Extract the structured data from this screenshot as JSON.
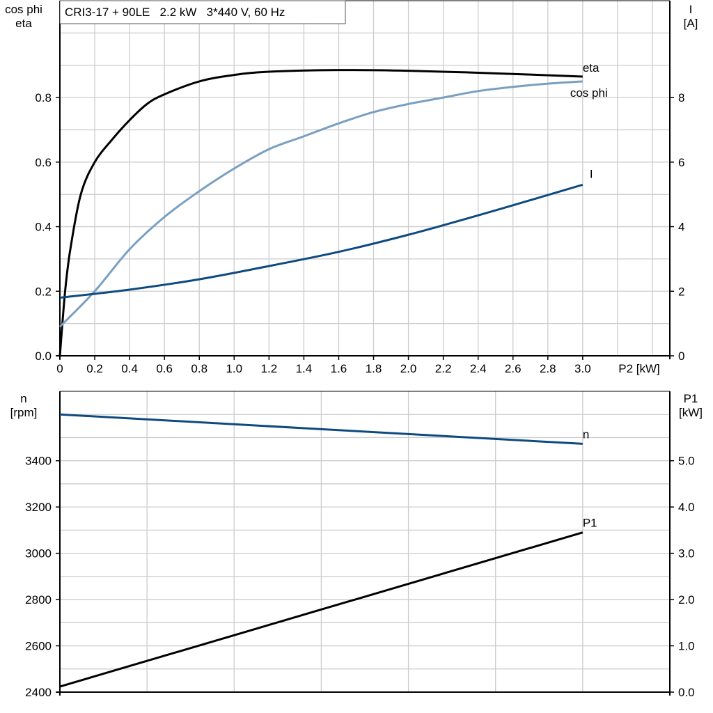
{
  "chart_data": [
    {
      "type": "line",
      "title": "CRI3-17 + 90LE   2.2 kW   3*440 V, 60 Hz",
      "xlabel": "P2 [kW]",
      "ylabel": "cos phi\neta",
      "ylabel_right": "I\n[A]",
      "xlim": [
        0,
        3.5
      ],
      "ylim": [
        0,
        1.1
      ],
      "ylim_right": [
        0,
        11
      ],
      "grid": true,
      "xticks": [
        "0",
        "0.2",
        "0.4",
        "0.6",
        "0.8",
        "1.0",
        "1.2",
        "1.4",
        "1.6",
        "1.8",
        "2.0",
        "2.2",
        "2.4",
        "2.6",
        "2.8",
        "3.0"
      ],
      "yticks": [
        "0.0",
        "0.2",
        "0.4",
        "0.6",
        "0.8"
      ],
      "yticks_right": [
        "0",
        "2",
        "4",
        "6",
        "8"
      ],
      "series": [
        {
          "name": "eta",
          "axis": "left",
          "color": "#000000",
          "x": [
            0,
            0.03,
            0.06,
            0.12,
            0.2,
            0.3,
            0.4,
            0.5,
            0.6,
            0.8,
            1.0,
            1.2,
            1.6,
            2.0,
            2.5,
            3.0
          ],
          "y": [
            0,
            0.2,
            0.33,
            0.5,
            0.6,
            0.67,
            0.73,
            0.78,
            0.81,
            0.85,
            0.87,
            0.88,
            0.885,
            0.883,
            0.875,
            0.865
          ]
        },
        {
          "name": "cos phi",
          "axis": "left",
          "color": "#7a9fc0",
          "x": [
            0,
            0.2,
            0.4,
            0.6,
            0.8,
            1.0,
            1.2,
            1.4,
            1.6,
            1.8,
            2.0,
            2.2,
            2.4,
            2.6,
            2.8,
            3.0
          ],
          "y": [
            0.09,
            0.2,
            0.33,
            0.43,
            0.51,
            0.58,
            0.64,
            0.68,
            0.72,
            0.755,
            0.78,
            0.8,
            0.82,
            0.833,
            0.843,
            0.85
          ]
        },
        {
          "name": "I",
          "axis": "right",
          "color": "#0e4a80",
          "x": [
            0,
            0.4,
            0.8,
            1.2,
            1.6,
            2.0,
            2.4,
            2.8,
            3.0
          ],
          "y": [
            1.8,
            2.05,
            2.37,
            2.78,
            3.22,
            3.75,
            4.35,
            4.98,
            5.3
          ]
        }
      ]
    },
    {
      "type": "line",
      "xlim": [
        0,
        3.5
      ],
      "ylabel": "n\n[rpm]",
      "ylabel_right": "P1\n[kW]",
      "ylim": [
        2400,
        3700
      ],
      "ylim_right": [
        0,
        6.5
      ],
      "grid": true,
      "yticks": [
        "2400",
        "2600",
        "2800",
        "3000",
        "3200",
        "3400"
      ],
      "yticks_right": [
        "0.0",
        "1.0",
        "2.0",
        "3.0",
        "4.0",
        "5.0"
      ],
      "series": [
        {
          "name": "n",
          "axis": "left",
          "color": "#0e4a80",
          "x": [
            0,
            3.0
          ],
          "y": [
            3600,
            3473
          ]
        },
        {
          "name": "P1",
          "axis": "right",
          "color": "#000000",
          "x": [
            0,
            3.0
          ],
          "y": [
            0.12,
            3.45
          ]
        }
      ]
    }
  ]
}
